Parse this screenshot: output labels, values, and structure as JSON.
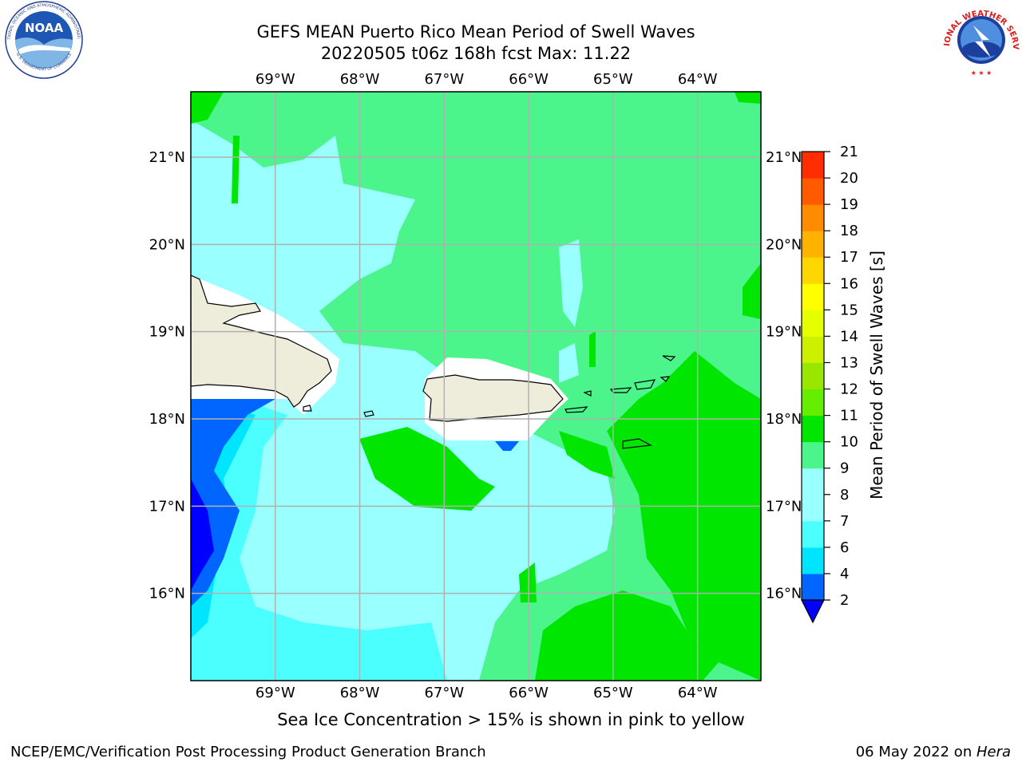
{
  "title": {
    "line1": "GEFS MEAN Puerto Rico Mean Period of Swell Waves",
    "line2": "20220505 t06z 168h fcst   Max: 11.22"
  },
  "map": {
    "lon_labels": [
      "69°W",
      "68°W",
      "67°W",
      "66°W",
      "65°W",
      "64°W"
    ],
    "lat_labels": [
      "21°N",
      "20°N",
      "19°N",
      "18°N",
      "17°N",
      "16°N"
    ],
    "lon_range": [
      -70.0,
      -63.25
    ],
    "lat_range": [
      15.0,
      21.75
    ],
    "land_color": "#eeeddc",
    "grid_color": "#b0b0b0"
  },
  "colorbar": {
    "label": "Mean Period of Swell Waves [s]",
    "ticks": [
      "2",
      "4",
      "6",
      "7",
      "8",
      "9",
      "10",
      "11",
      "12",
      "13",
      "14",
      "15",
      "16",
      "17",
      "18",
      "19",
      "20",
      "21"
    ],
    "colors": [
      "#0066ff",
      "#00e5ff",
      "#4cffff",
      "#99ffff",
      "#99ffff",
      "#4cf58c",
      "#00e600",
      "#66ee00",
      "#99e600",
      "#ccf000",
      "#e6ff00",
      "#ffff00",
      "#ffd700",
      "#ffb300",
      "#ff8c00",
      "#ff5a00",
      "#ff2d00",
      "#ff0000"
    ],
    "under_color": "#0000ff"
  },
  "note": "Sea Ice Concentration > 15% is shown in pink to yellow",
  "footer": {
    "left": "NCEP/EMC/Verification Post Processing Product Generation Branch",
    "date": "06 May 2022 on ",
    "host": "Hera"
  },
  "logos": {
    "noaa": "NOAA",
    "noaa_ring": "NATIONAL OCEANIC AND ATMOSPHERIC ADMINISTRATION",
    "noaa_ring_bottom": "U.S. DEPARTMENT OF COMMERCE",
    "nws_ring": "NATIONAL WEATHER SERVICE"
  }
}
